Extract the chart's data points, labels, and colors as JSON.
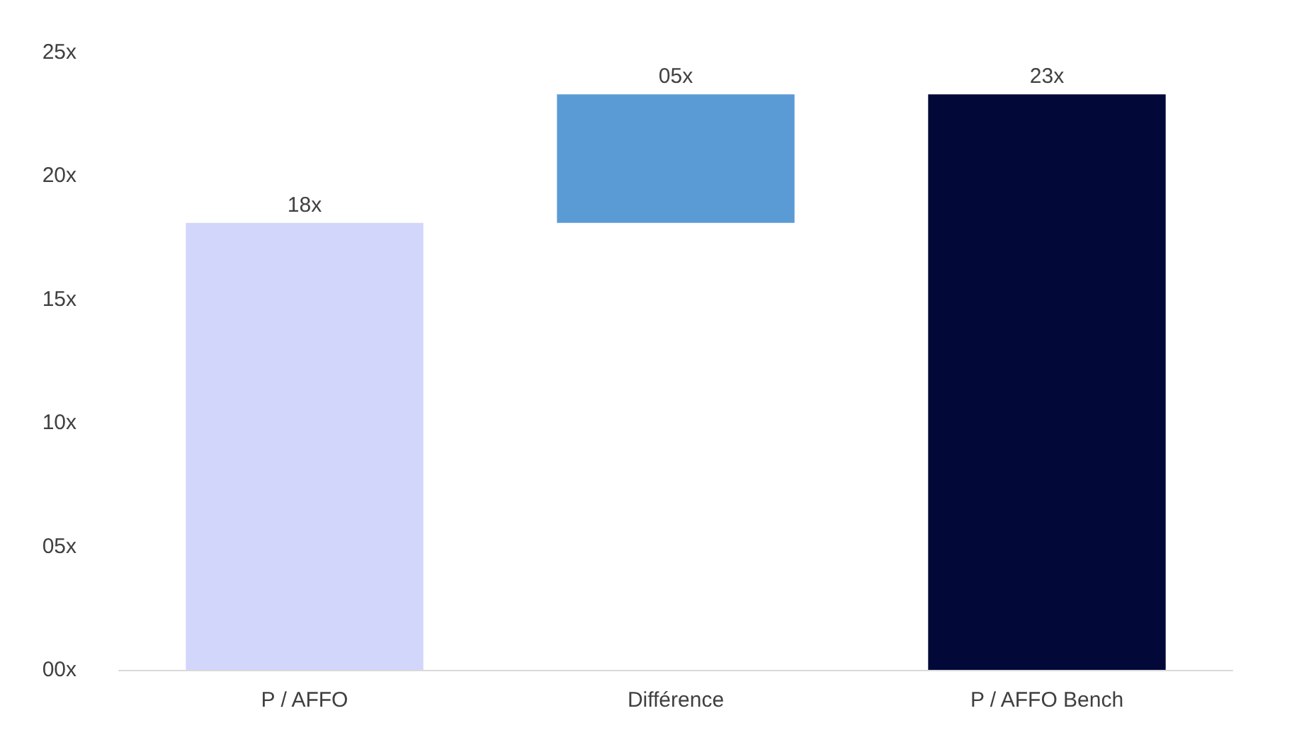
{
  "chart_data": {
    "type": "bar",
    "categories": [
      "P / AFFO",
      "Différence",
      "P / AFFO Bench"
    ],
    "values": [
      18.1,
      5.2,
      23.3
    ],
    "base": [
      0,
      18.1,
      0
    ],
    "colors": [
      "#d3d6fb",
      "#5b9bd5",
      "#020838"
    ],
    "value_labels": [
      "18x",
      "05x",
      "23x"
    ],
    "ylim": [
      0,
      25
    ],
    "yticks": [
      {
        "value": 0,
        "label": "00x"
      },
      {
        "value": 5,
        "label": "05x"
      },
      {
        "value": 10,
        "label": "10x"
      },
      {
        "value": 15,
        "label": "15x"
      },
      {
        "value": 20,
        "label": "20x"
      },
      {
        "value": 25,
        "label": "25x"
      }
    ],
    "grid": false
  }
}
